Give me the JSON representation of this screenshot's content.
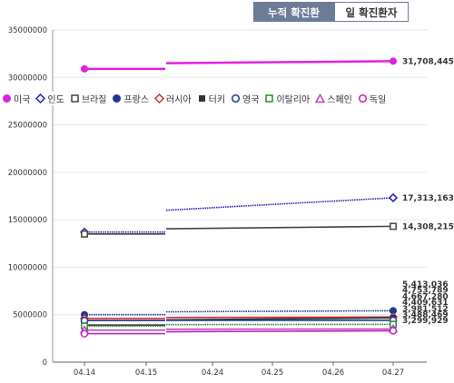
{
  "tabs": {
    "cumulative": "누적 확진환자",
    "daily": "일 확진환자"
  },
  "chart_data": {
    "type": "line",
    "categories": [
      "04.14",
      "04.15",
      "04.24",
      "04.25",
      "04.26",
      "04.27"
    ],
    "ylim": [
      0,
      35000000
    ],
    "yticks": [
      "35000000",
      "30000000",
      "25000000",
      "20000000",
      "15000000",
      "10000000",
      "5000000",
      "0"
    ],
    "grid": true,
    "legend_position": "top-left",
    "series": [
      {
        "name": "미국",
        "color": "#e020e0",
        "marker": "filled-circle",
        "values": [
          30900000,
          null,
          31500000,
          null,
          null,
          31708445
        ],
        "end_label": "31,708,445"
      },
      {
        "name": "인도",
        "color": "#2020c0",
        "marker": "open-diamond",
        "dotted": true,
        "values": [
          13700000,
          null,
          16000000,
          null,
          null,
          17313163
        ],
        "end_label": "17,313,163"
      },
      {
        "name": "브라질",
        "color": "#444444",
        "marker": "open-square",
        "values": [
          13500000,
          null,
          14050000,
          null,
          null,
          14308215
        ],
        "end_label": "14,308,215"
      },
      {
        "name": "프랑스",
        "color": "#1a3a8f",
        "marker": "filled-circle",
        "dotted": true,
        "values": [
          5000000,
          null,
          5300000,
          null,
          null,
          5413036
        ],
        "end_label": "5,413,036"
      },
      {
        "name": "러시아",
        "color": "#d03030",
        "marker": "open-diamond",
        "values": [
          4600000,
          null,
          4700000,
          null,
          null,
          4753789
        ],
        "end_label": "4,753,789"
      },
      {
        "name": "터키",
        "color": "#333333",
        "marker": "filled-square",
        "values": [
          3900000,
          null,
          4450000,
          null,
          null,
          4667280
        ],
        "end_label": "4,667,280"
      },
      {
        "name": "영국",
        "color": "#1a3a8f",
        "marker": "open-circle",
        "values": [
          4380000,
          null,
          4400000,
          null,
          null,
          4409631
        ],
        "end_label": "4,409,631"
      },
      {
        "name": "이탈리아",
        "color": "#2a8a2a",
        "marker": "open-square",
        "dotted": true,
        "values": [
          3800000,
          null,
          3950000,
          null,
          null,
          3981512
        ],
        "end_label": "3,981,512"
      },
      {
        "name": "스페인",
        "color": "#c040c0",
        "marker": "open-triangle",
        "values": [
          3370000,
          null,
          3460000,
          null,
          null,
          3488469
        ],
        "end_label": "3,488,469"
      },
      {
        "name": "독일",
        "color": "#c020c0",
        "marker": "open-circle",
        "values": [
          3000000,
          null,
          3200000,
          null,
          null,
          3299929
        ],
        "end_label": "3,299,929"
      }
    ]
  }
}
